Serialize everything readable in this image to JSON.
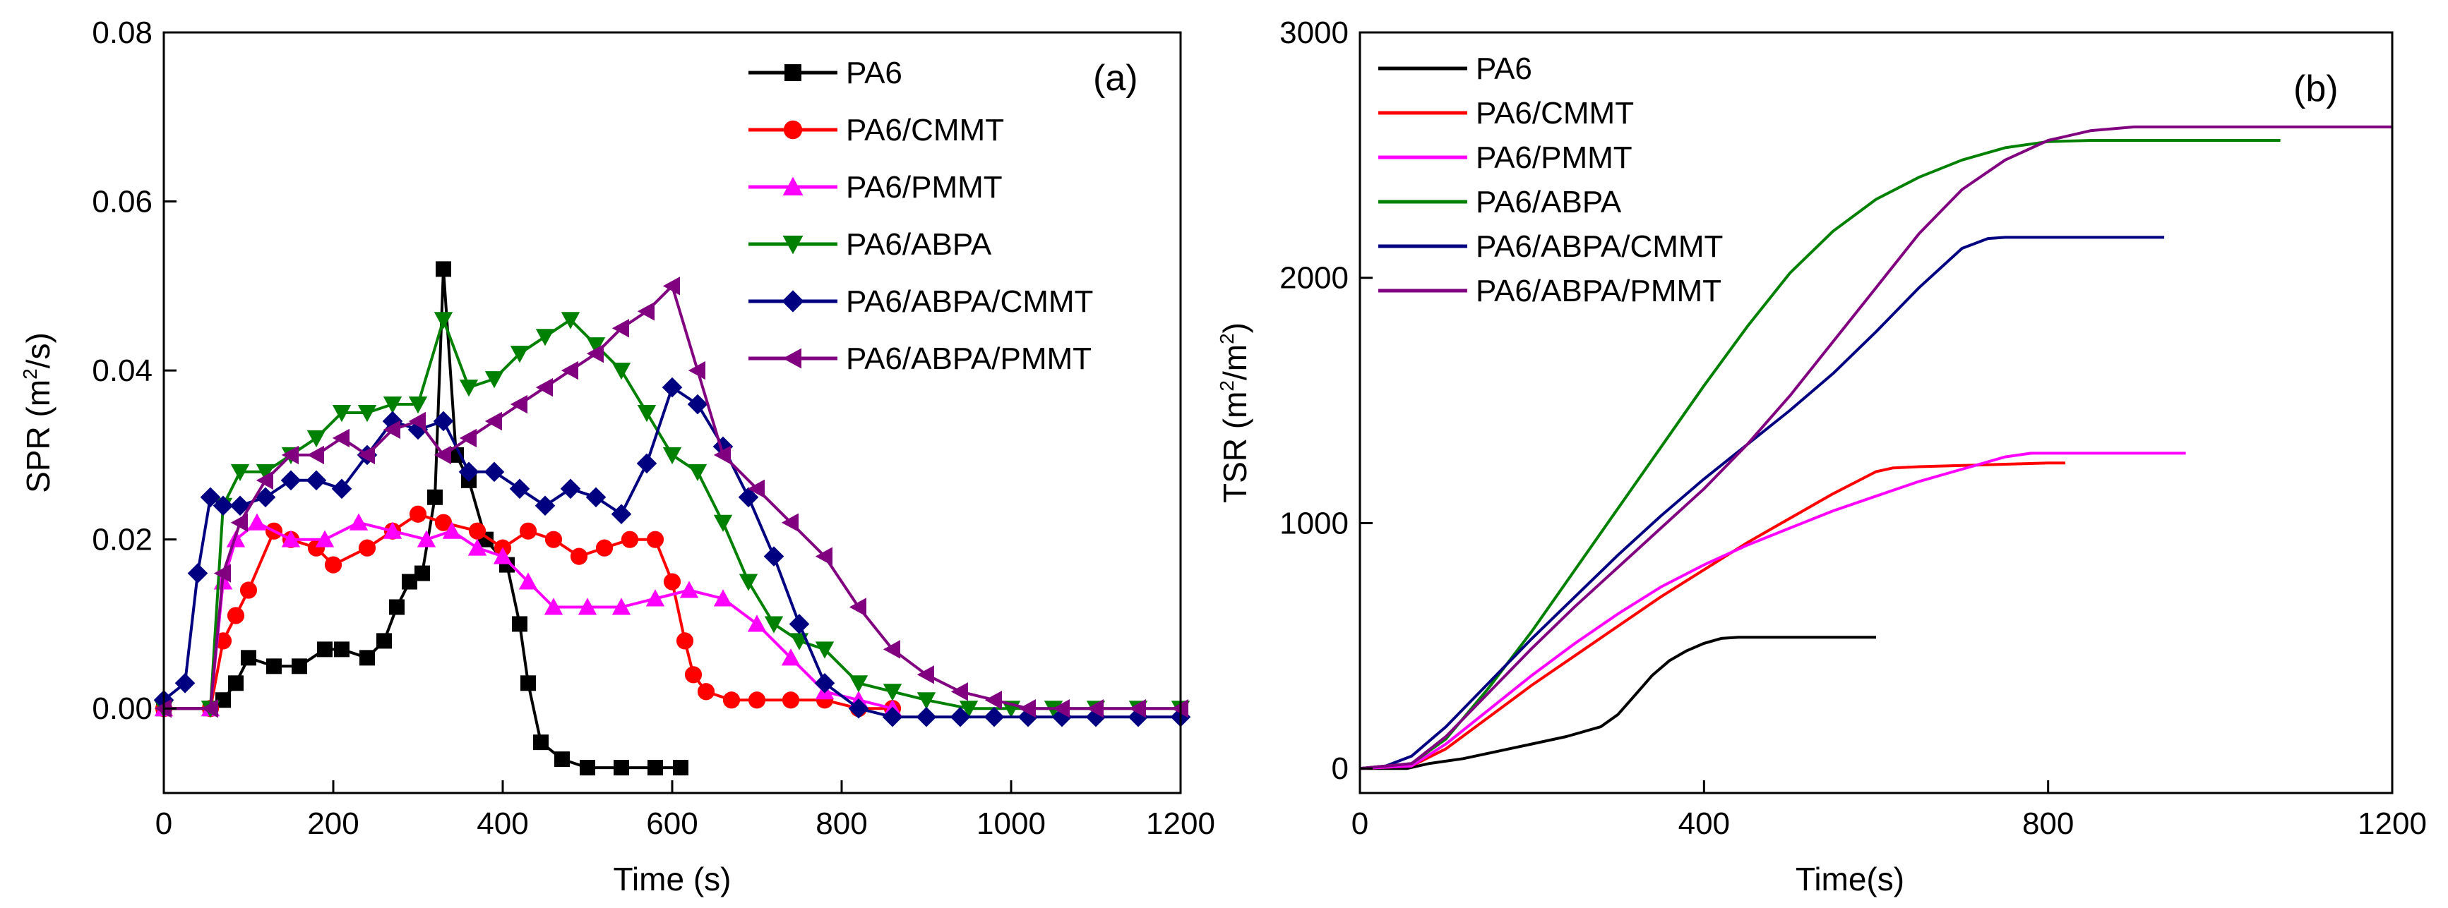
{
  "chart_data": [
    {
      "panel": "(a)",
      "type": "line",
      "xlabel": "Time (s)",
      "ylabel_parts": [
        "SPR (m",
        "2",
        "/s)"
      ],
      "xlim": [
        0,
        1200
      ],
      "ylim": [
        -0.01,
        0.08
      ],
      "xticks": [
        0,
        200,
        400,
        600,
        800,
        1000,
        1200
      ],
      "xtick_labels": [
        "0",
        "200",
        "400",
        "600",
        "800",
        "1000",
        "1200"
      ],
      "yticks": [
        0.0,
        0.02,
        0.04,
        0.06,
        0.08
      ],
      "ytick_labels": [
        "0.00",
        "0.02",
        "0.04",
        "0.06",
        "0.08"
      ],
      "legend_position": "top-right",
      "series": [
        {
          "name": "PA6",
          "color": "#000000",
          "marker": "square",
          "x": [
            0,
            55,
            70,
            85,
            100,
            130,
            160,
            190,
            210,
            240,
            260,
            275,
            290,
            305,
            320,
            330,
            345,
            360,
            380,
            405,
            420,
            430,
            445,
            470,
            500,
            540,
            580,
            610
          ],
          "y": [
            0.0,
            0.0,
            0.001,
            0.003,
            0.006,
            0.005,
            0.005,
            0.007,
            0.007,
            0.006,
            0.008,
            0.012,
            0.015,
            0.016,
            0.025,
            0.052,
            0.03,
            0.027,
            0.02,
            0.017,
            0.01,
            0.003,
            -0.004,
            -0.006,
            -0.007,
            -0.007,
            -0.007,
            -0.007
          ]
        },
        {
          "name": "PA6/CMMT",
          "color": "#ff0000",
          "marker": "circle",
          "x": [
            0,
            55,
            70,
            85,
            100,
            130,
            150,
            180,
            200,
            240,
            270,
            300,
            330,
            370,
            400,
            430,
            460,
            490,
            520,
            550,
            580,
            600,
            615,
            625,
            640,
            670,
            700,
            740,
            780,
            820,
            860
          ],
          "y": [
            0.0,
            0.0,
            0.008,
            0.011,
            0.014,
            0.021,
            0.02,
            0.019,
            0.017,
            0.019,
            0.021,
            0.023,
            0.022,
            0.021,
            0.019,
            0.021,
            0.02,
            0.018,
            0.019,
            0.02,
            0.02,
            0.015,
            0.008,
            0.004,
            0.002,
            0.001,
            0.001,
            0.001,
            0.001,
            0.0,
            0.0
          ]
        },
        {
          "name": "PA6/PMMT",
          "color": "#ff00ff",
          "marker": "triangle-up",
          "x": [
            0,
            55,
            70,
            85,
            110,
            150,
            190,
            230,
            270,
            310,
            340,
            370,
            400,
            430,
            460,
            500,
            540,
            580,
            620,
            660,
            700,
            740,
            780,
            820,
            860
          ],
          "y": [
            0.0,
            0.0,
            0.015,
            0.02,
            0.022,
            0.02,
            0.02,
            0.022,
            0.021,
            0.02,
            0.021,
            0.019,
            0.018,
            0.015,
            0.012,
            0.012,
            0.012,
            0.013,
            0.014,
            0.013,
            0.01,
            0.006,
            0.002,
            0.001,
            0.0
          ]
        },
        {
          "name": "PA6/ABPA",
          "color": "#008000",
          "marker": "triangle-down",
          "x": [
            0,
            55,
            70,
            90,
            120,
            150,
            180,
            210,
            240,
            270,
            300,
            330,
            360,
            390,
            420,
            450,
            480,
            510,
            540,
            570,
            600,
            630,
            660,
            690,
            720,
            750,
            780,
            820,
            860,
            900,
            950,
            1000,
            1050,
            1100,
            1150,
            1200
          ],
          "y": [
            0.0,
            0.0,
            0.024,
            0.028,
            0.028,
            0.03,
            0.032,
            0.035,
            0.035,
            0.036,
            0.036,
            0.046,
            0.038,
            0.039,
            0.042,
            0.044,
            0.046,
            0.043,
            0.04,
            0.035,
            0.03,
            0.028,
            0.022,
            0.015,
            0.01,
            0.008,
            0.007,
            0.003,
            0.002,
            0.001,
            0.0,
            0.0,
            0.0,
            0.0,
            0.0,
            0.0
          ]
        },
        {
          "name": "PA6/ABPA/CMMT",
          "color": "#000080",
          "marker": "diamond",
          "x": [
            0,
            25,
            40,
            55,
            70,
            90,
            120,
            150,
            180,
            210,
            240,
            270,
            300,
            330,
            360,
            390,
            420,
            450,
            480,
            510,
            540,
            570,
            600,
            630,
            660,
            690,
            720,
            750,
            780,
            820,
            860,
            900,
            940,
            980,
            1020,
            1060,
            1100,
            1150,
            1200
          ],
          "y": [
            0.001,
            0.003,
            0.016,
            0.025,
            0.024,
            0.024,
            0.025,
            0.027,
            0.027,
            0.026,
            0.03,
            0.034,
            0.033,
            0.034,
            0.028,
            0.028,
            0.026,
            0.024,
            0.026,
            0.025,
            0.023,
            0.029,
            0.038,
            0.036,
            0.031,
            0.025,
            0.018,
            0.01,
            0.003,
            0.0,
            -0.001,
            -0.001,
            -0.001,
            -0.001,
            -0.001,
            -0.001,
            -0.001,
            -0.001,
            -0.001
          ]
        },
        {
          "name": "PA6/ABPA/PMMT",
          "color": "#800080",
          "marker": "triangle-left",
          "x": [
            0,
            55,
            70,
            90,
            120,
            150,
            180,
            210,
            240,
            270,
            300,
            330,
            360,
            390,
            420,
            450,
            480,
            510,
            540,
            570,
            600,
            630,
            660,
            700,
            740,
            780,
            820,
            860,
            900,
            940,
            980,
            1020,
            1060,
            1100,
            1150,
            1200
          ],
          "y": [
            0.0,
            0.0,
            0.016,
            0.022,
            0.027,
            0.03,
            0.03,
            0.032,
            0.03,
            0.033,
            0.034,
            0.03,
            0.032,
            0.034,
            0.036,
            0.038,
            0.04,
            0.042,
            0.045,
            0.047,
            0.05,
            0.04,
            0.03,
            0.026,
            0.022,
            0.018,
            0.012,
            0.007,
            0.004,
            0.002,
            0.001,
            0.0,
            0.0,
            0.0,
            0.0,
            0.0
          ]
        }
      ]
    },
    {
      "panel": "(b)",
      "type": "line",
      "xlabel": "Time(s)",
      "ylabel_parts": [
        "TSR (m",
        "2",
        "/m",
        "2",
        ")"
      ],
      "xlim": [
        0,
        1200
      ],
      "ylim": [
        -100,
        3000
      ],
      "xticks": [
        0,
        400,
        800,
        1200
      ],
      "xtick_labels": [
        "0",
        "400",
        "800",
        "1200"
      ],
      "yticks": [
        0,
        1000,
        2000,
        3000
      ],
      "ytick_labels": [
        "0",
        "1000",
        "2000",
        "3000"
      ],
      "legend_position": "top-left",
      "series": [
        {
          "name": "PA6",
          "color": "#000000",
          "x": [
            0,
            55,
            80,
            120,
            160,
            200,
            240,
            280,
            300,
            320,
            340,
            360,
            380,
            400,
            420,
            440,
            480,
            520,
            560,
            600
          ],
          "y": [
            0,
            0,
            20,
            40,
            70,
            100,
            130,
            170,
            220,
            300,
            380,
            440,
            480,
            510,
            530,
            535,
            535,
            535,
            535,
            535
          ]
        },
        {
          "name": "PA6/CMMT",
          "color": "#ff0000",
          "x": [
            0,
            60,
            100,
            150,
            200,
            250,
            300,
            350,
            400,
            450,
            500,
            550,
            600,
            620,
            650,
            700,
            750,
            800,
            820
          ],
          "y": [
            0,
            10,
            80,
            210,
            340,
            460,
            580,
            700,
            810,
            920,
            1020,
            1120,
            1210,
            1225,
            1230,
            1235,
            1240,
            1245,
            1245
          ]
        },
        {
          "name": "PA6/PMMT",
          "color": "#ff00ff",
          "x": [
            0,
            60,
            100,
            150,
            200,
            250,
            300,
            350,
            400,
            450,
            500,
            550,
            600,
            650,
            700,
            750,
            780,
            850,
            900,
            960
          ],
          "y": [
            0,
            10,
            100,
            240,
            380,
            510,
            630,
            740,
            830,
            910,
            980,
            1050,
            1110,
            1170,
            1220,
            1270,
            1285,
            1285,
            1285,
            1285
          ]
        },
        {
          "name": "PA6/ABPA",
          "color": "#008000",
          "x": [
            0,
            60,
            100,
            150,
            200,
            250,
            300,
            350,
            400,
            450,
            500,
            550,
            600,
            650,
            700,
            750,
            800,
            850,
            900,
            1000,
            1070
          ],
          "y": [
            0,
            20,
            120,
            330,
            560,
            810,
            1060,
            1310,
            1560,
            1800,
            2020,
            2190,
            2320,
            2410,
            2480,
            2530,
            2555,
            2560,
            2560,
            2560,
            2560
          ]
        },
        {
          "name": "PA6/ABPA/CMMT",
          "color": "#000080",
          "x": [
            0,
            30,
            60,
            100,
            150,
            200,
            250,
            300,
            350,
            400,
            450,
            500,
            550,
            600,
            650,
            700,
            730,
            750,
            800,
            850,
            935
          ],
          "y": [
            0,
            10,
            50,
            170,
            350,
            530,
            700,
            870,
            1030,
            1180,
            1320,
            1460,
            1610,
            1780,
            1960,
            2120,
            2160,
            2165,
            2165,
            2165,
            2165
          ]
        },
        {
          "name": "PA6/ABPA/PMMT",
          "color": "#800080",
          "x": [
            0,
            60,
            100,
            150,
            200,
            250,
            300,
            350,
            400,
            450,
            500,
            550,
            600,
            650,
            700,
            750,
            800,
            850,
            900,
            1000,
            1100,
            1200
          ],
          "y": [
            0,
            20,
            130,
            310,
            490,
            660,
            820,
            980,
            1140,
            1320,
            1520,
            1740,
            1960,
            2180,
            2360,
            2480,
            2560,
            2600,
            2615,
            2615,
            2615,
            2615
          ]
        }
      ]
    }
  ]
}
